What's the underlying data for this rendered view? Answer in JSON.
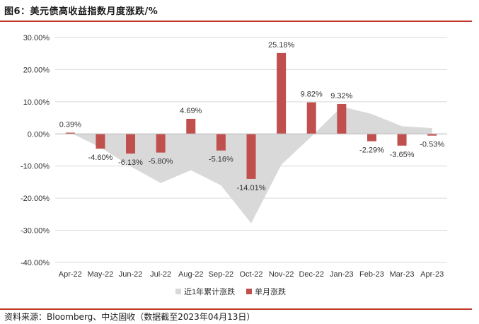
{
  "header": {
    "title": "图6：美元债高收益指数月度涨跌/%"
  },
  "footer": {
    "source": "资料来源：Bloomberg、中达固收（数据截至2023年04月13日）"
  },
  "colors": {
    "bar": "#c0504d",
    "area": "#d9d9d9",
    "rule": "#c0392b",
    "grid": "#d9d9d9"
  },
  "chart_data": {
    "type": "bar",
    "categories": [
      "Apr-22",
      "May-22",
      "Jun-22",
      "Jul-22",
      "Aug-22",
      "Sep-22",
      "Oct-22",
      "Nov-22",
      "Dec-22",
      "Jan-23",
      "Feb-23",
      "Mar-23",
      "Apr-23"
    ],
    "ylim": [
      -40,
      30
    ],
    "yticks": [
      30,
      20,
      10,
      0,
      -10,
      -20,
      -30,
      -40
    ],
    "ytick_labels": [
      "30.00%",
      "20.00%",
      "10.00%",
      "0.00%",
      "-10.00%",
      "-20.00%",
      "-30.00%",
      "-40.00%"
    ],
    "grid": true,
    "legend_position": "bottom",
    "series": [
      {
        "name": "近1年累计涨跌",
        "type": "area",
        "values": [
          0.39,
          -4.2,
          -10.1,
          -15.3,
          -11.3,
          -16.0,
          -27.8,
          -9.6,
          -0.8,
          8.5,
          6.2,
          2.4,
          1.8
        ]
      },
      {
        "name": "单月涨跌",
        "type": "bar",
        "values": [
          0.39,
          -4.6,
          -6.13,
          -5.8,
          4.69,
          -5.16,
          -14.01,
          25.18,
          9.82,
          9.32,
          -2.29,
          -3.65,
          -0.53
        ],
        "labels": [
          "0.39%",
          "-4.60%",
          "-6.13%",
          "-5.80%",
          "4.69%",
          "-5.16%",
          "-14.01%",
          "25.18%",
          "9.82%",
          "9.32%",
          "-2.29%",
          "-3.65%",
          "-0.53%"
        ]
      }
    ]
  }
}
